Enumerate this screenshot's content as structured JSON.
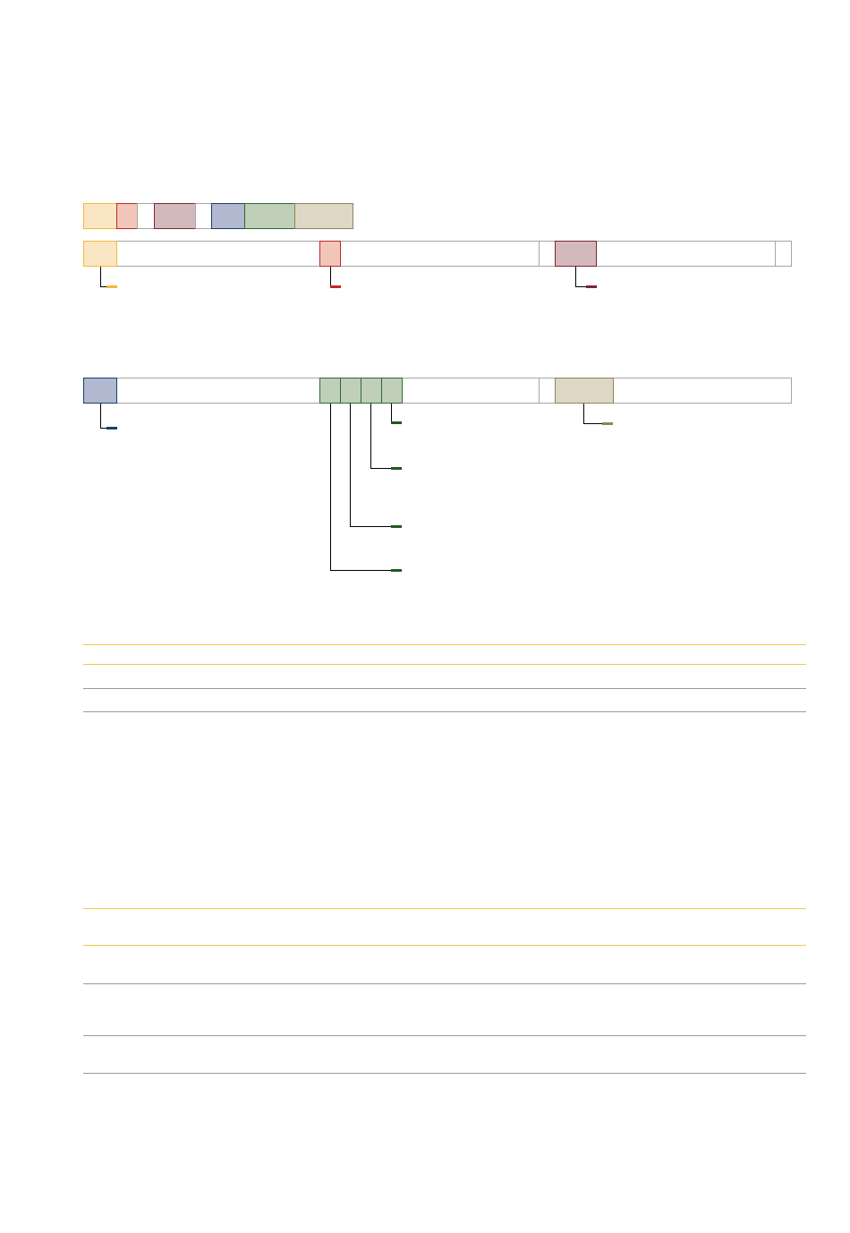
{
  "colors": {
    "yellow_fill": "#fbe6c4",
    "yellow_border": "#f1b937",
    "red_fill": "#f2c6b9",
    "red_border": "#c0282a",
    "mauve_fill": "#d3b9bb",
    "mauve_border": "#7a2434",
    "blue_fill": "#b0b9d0",
    "blue_border": "#1f3b6f",
    "green_fill": "#bfcfb9",
    "green_border": "#2c6a2f",
    "tan_fill": "#ded7c5",
    "tan_border": "#8f8455",
    "frame_border": "#a6a6a6",
    "connector": "#000000",
    "rule_yellow": "#f1c84b",
    "rule_grey": "#9a9a9a"
  },
  "legend_swatches": [
    {
      "id": "yellow"
    },
    {
      "id": "red"
    },
    {
      "id": "blank"
    },
    {
      "id": "mauve"
    },
    {
      "id": "blank"
    },
    {
      "id": "blue"
    },
    {
      "id": "green"
    },
    {
      "id": "tan"
    }
  ],
  "register_rows": [
    {
      "id": "row-1",
      "fields": [
        "yellow",
        "red",
        "mauve"
      ]
    },
    {
      "id": "row-2",
      "fields": [
        "blue",
        "green",
        "green",
        "green",
        "green",
        "tan"
      ]
    }
  ],
  "table_1": {
    "rows": 3
  },
  "table_2": {
    "rows": 4
  }
}
